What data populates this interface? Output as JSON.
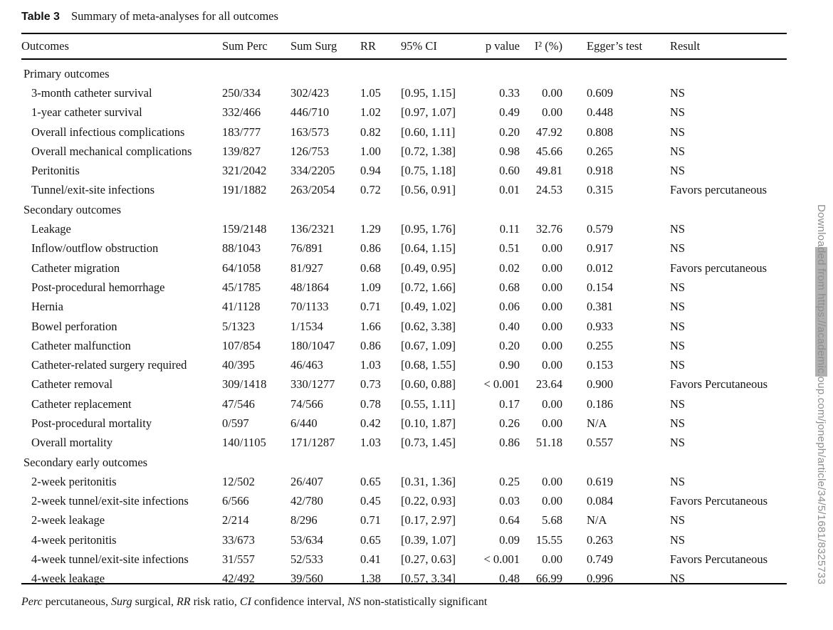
{
  "table": {
    "caption_label": "Table 3",
    "caption_text": "Summary of meta-analyses for all outcomes",
    "columns": [
      {
        "label": "Outcomes",
        "align": "left"
      },
      {
        "label": "Sum Perc",
        "align": "left"
      },
      {
        "label": "Sum Surg",
        "align": "left"
      },
      {
        "label": "RR",
        "align": "left"
      },
      {
        "label": "95% CI",
        "align": "left"
      },
      {
        "label": "p value",
        "align": "right"
      },
      {
        "label": "I² (%)",
        "align": "right"
      },
      {
        "label": "Egger’s test",
        "align": "left"
      },
      {
        "label": "Result",
        "align": "left"
      }
    ],
    "rows": [
      {
        "type": "section",
        "label": "Primary outcomes"
      },
      {
        "type": "data",
        "cells": [
          "3-month catheter survival",
          "250/334",
          "302/423",
          "1.05",
          "[0.95, 1.15]",
          "0.33",
          "0.00",
          "0.609",
          "NS"
        ]
      },
      {
        "type": "data",
        "cells": [
          "1-year catheter survival",
          "332/466",
          "446/710",
          "1.02",
          "[0.97, 1.07]",
          "0.49",
          "0.00",
          "0.448",
          "NS"
        ]
      },
      {
        "type": "data",
        "cells": [
          "Overall infectious complications",
          "183/777",
          "163/573",
          "0.82",
          "[0.60, 1.11]",
          "0.20",
          "47.92",
          "0.808",
          "NS"
        ]
      },
      {
        "type": "data",
        "cells": [
          "Overall mechanical complications",
          "139/827",
          "126/753",
          "1.00",
          "[0.72, 1.38]",
          "0.98",
          "45.66",
          "0.265",
          "NS"
        ]
      },
      {
        "type": "data",
        "cells": [
          "Peritonitis",
          "321/2042",
          "334/2205",
          "0.94",
          "[0.75, 1.18]",
          "0.60",
          "49.81",
          "0.918",
          "NS"
        ]
      },
      {
        "type": "data",
        "cells": [
          "Tunnel/exit-site infections",
          "191/1882",
          "263/2054",
          "0.72",
          "[0.56, 0.91]",
          "0.01",
          "24.53",
          "0.315",
          "Favors percutaneous"
        ]
      },
      {
        "type": "section",
        "label": "Secondary outcomes"
      },
      {
        "type": "data",
        "cells": [
          "Leakage",
          "159/2148",
          "136/2321",
          "1.29",
          "[0.95, 1.76]",
          "0.11",
          "32.76",
          "0.579",
          "NS"
        ]
      },
      {
        "type": "data",
        "cells": [
          "Inflow/outflow obstruction",
          "88/1043",
          "76/891",
          "0.86",
          "[0.64, 1.15]",
          "0.51",
          "0.00",
          "0.917",
          "NS"
        ]
      },
      {
        "type": "data",
        "cells": [
          "Catheter migration",
          "64/1058",
          "81/927",
          "0.68",
          "[0.49, 0.95]",
          "0.02",
          "0.00",
          "0.012",
          "Favors percutaneous"
        ]
      },
      {
        "type": "data",
        "cells": [
          "Post-procedural hemorrhage",
          "45/1785",
          "48/1864",
          "1.09",
          "[0.72, 1.66]",
          "0.68",
          "0.00",
          "0.154",
          "NS"
        ]
      },
      {
        "type": "data",
        "cells": [
          "Hernia",
          "41/1128",
          "70/1133",
          "0.71",
          "[0.49, 1.02]",
          "0.06",
          "0.00",
          "0.381",
          "NS"
        ]
      },
      {
        "type": "data",
        "cells": [
          "Bowel perforation",
          "5/1323",
          "1/1534",
          "1.66",
          "[0.62, 3.38]",
          "0.40",
          "0.00",
          "0.933",
          "NS"
        ]
      },
      {
        "type": "data",
        "cells": [
          "Catheter malfunction",
          "107/854",
          "180/1047",
          "0.86",
          "[0.67, 1.09]",
          "0.20",
          "0.00",
          "0.255",
          "NS"
        ]
      },
      {
        "type": "data",
        "cells": [
          "Catheter-related surgery required",
          "40/395",
          "46/463",
          "1.03",
          "[0.68, 1.55]",
          "0.90",
          "0.00",
          "0.153",
          "NS"
        ]
      },
      {
        "type": "data",
        "cells": [
          "Catheter removal",
          "309/1418",
          "330/1277",
          "0.73",
          "[0.60, 0.88]",
          "< 0.001",
          "23.64",
          "0.900",
          "Favors Percutaneous"
        ]
      },
      {
        "type": "data",
        "cells": [
          "Catheter replacement",
          "47/546",
          "74/566",
          "0.78",
          "[0.55, 1.11]",
          "0.17",
          "0.00",
          "0.186",
          "NS"
        ]
      },
      {
        "type": "data",
        "cells": [
          "Post-procedural mortality",
          "0/597",
          "6/440",
          "0.42",
          "[0.10, 1.87]",
          "0.26",
          "0.00",
          "N/A",
          "NS"
        ]
      },
      {
        "type": "data",
        "cells": [
          "Overall mortality",
          "140/1105",
          "171/1287",
          "1.03",
          "[0.73, 1.45]",
          "0.86",
          "51.18",
          "0.557",
          "NS"
        ]
      },
      {
        "type": "section",
        "label": "Secondary early outcomes"
      },
      {
        "type": "data",
        "cells": [
          "2-week peritonitis",
          "12/502",
          "26/407",
          "0.65",
          "[0.31, 1.36]",
          "0.25",
          "0.00",
          "0.619",
          "NS"
        ]
      },
      {
        "type": "data",
        "cells": [
          "2-week tunnel/exit-site infections",
          "6/566",
          "42/780",
          "0.45",
          "[0.22, 0.93]",
          "0.03",
          "0.00",
          "0.084",
          "Favors Percutaneous"
        ]
      },
      {
        "type": "data",
        "cells": [
          "2-week leakage",
          "2/214",
          "8/296",
          "0.71",
          "[0.17, 2.97]",
          "0.64",
          "5.68",
          "N/A",
          "NS"
        ]
      },
      {
        "type": "data",
        "cells": [
          "4-week peritonitis",
          "33/673",
          "53/634",
          "0.65",
          "[0.39, 1.07]",
          "0.09",
          "15.55",
          "0.263",
          "NS"
        ]
      },
      {
        "type": "data",
        "cells": [
          "4-week tunnel/exit-site infections",
          "31/557",
          "52/533",
          "0.41",
          "[0.27, 0.63]",
          "< 0.001",
          "0.00",
          "0.749",
          "Favors Percutaneous"
        ]
      },
      {
        "type": "data",
        "cells": [
          "4-week leakage",
          "42/492",
          "39/560",
          "1.38",
          "[0.57, 3.34]",
          "0.48",
          "66.99",
          "0.996",
          "NS"
        ]
      }
    ],
    "footnote_segments": [
      {
        "text": "Perc",
        "italic": true
      },
      {
        "text": " percutaneous, ",
        "italic": false
      },
      {
        "text": "Surg",
        "italic": true
      },
      {
        "text": " surgical, ",
        "italic": false
      },
      {
        "text": "RR",
        "italic": true
      },
      {
        "text": " risk ratio, ",
        "italic": false
      },
      {
        "text": "CI",
        "italic": true
      },
      {
        "text": " confidence interval, ",
        "italic": false
      },
      {
        "text": "NS",
        "italic": true
      },
      {
        "text": " non-statistically significant",
        "italic": false
      }
    ]
  },
  "watermark": {
    "prefix": "Downloa",
    "highlighted": "ded from https://academic.",
    "suffix": "oup.com/joneph/article/34/5/1681/8325733",
    "text_color": "#8e8e8e",
    "highlight_color": "#b0b0b0"
  },
  "colors": {
    "text": "#141414",
    "rule": "#000000",
    "background": "#ffffff"
  }
}
